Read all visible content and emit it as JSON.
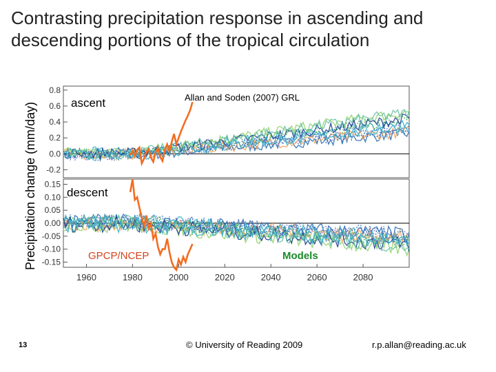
{
  "slide": {
    "title": "Contrasting precipitation response in ascending and descending portions of the tropical circulation",
    "page_number": "13",
    "copyright": "© University of Reading 2009",
    "email": "r.p.allan@reading.ac.uk"
  },
  "chart_data": {
    "type": "line",
    "ylabel": "Precipitation change (mm/day)",
    "xlim": [
      1950,
      2100
    ],
    "x_ticks": [
      "1960",
      "1980",
      "2000",
      "2020",
      "2040",
      "2060",
      "2080"
    ],
    "annotations": {
      "ascent": "ascent",
      "descent": "descent",
      "reference": "Allan and Soden (2007) GRL",
      "observations": "GPCP/NCEP",
      "models": "Models"
    },
    "colors": {
      "observations": "#f26d21",
      "model_palette": [
        "#2a6fb4",
        "#3ab0c8",
        "#3aa34a",
        "#8fd16a",
        "#f2a35c",
        "#7a7acc",
        "#1a3d8f",
        "#66c2a5"
      ]
    },
    "panels": [
      {
        "name": "ascent",
        "ylim": [
          -0.3,
          0.85
        ],
        "y_ticks": [
          "0.8",
          "0.6",
          "0.4",
          "0.2",
          "0.0",
          "-0.2"
        ],
        "observations": {
          "name": "GPCP/NCEP",
          "x": [
            1979,
            1980,
            1981,
            1982,
            1983,
            1984,
            1985,
            1986,
            1987,
            1988,
            1989,
            1990,
            1991,
            1992,
            1993,
            1994,
            1995,
            1996,
            1997,
            1998,
            1999,
            2000,
            2001,
            2002,
            2003,
            2004,
            2005,
            2006
          ],
          "y": [
            -0.02,
            0.04,
            -0.03,
            0.05,
            0.08,
            -0.12,
            -0.06,
            0.02,
            0.06,
            -0.05,
            -0.1,
            0.02,
            0.07,
            -0.04,
            -0.09,
            0.05,
            0.12,
            0.03,
            0.15,
            0.25,
            0.12,
            0.2,
            0.28,
            0.35,
            0.42,
            0.48,
            0.55,
            0.65
          ]
        },
        "models": {
          "start_year": 1950,
          "end_year": 2100,
          "trend_start": 1980,
          "trend_per_year": 0.0033,
          "noise": 0.07,
          "count": 10
        }
      },
      {
        "name": "descent",
        "ylim": [
          -0.17,
          0.17
        ],
        "y_ticks": [
          "0.15",
          "0.10",
          "0.05",
          "0.00",
          "-0.05",
          "-0.10",
          "-0.15"
        ],
        "observations": {
          "name": "GPCP/NCEP",
          "x": [
            1979,
            1980,
            1981,
            1982,
            1983,
            1984,
            1985,
            1986,
            1987,
            1988,
            1989,
            1990,
            1991,
            1992,
            1993,
            1994,
            1995,
            1996,
            1997,
            1998,
            1999,
            2000,
            2001,
            2002,
            2003,
            2004,
            2005,
            2006
          ],
          "y": [
            0.12,
            0.17,
            0.09,
            0.1,
            0.06,
            0.02,
            -0.01,
            0.03,
            -0.02,
            0.0,
            -0.06,
            -0.04,
            -0.09,
            -0.12,
            -0.1,
            -0.1,
            -0.06,
            -0.11,
            -0.15,
            -0.17,
            -0.18,
            -0.14,
            -0.16,
            -0.13,
            -0.15,
            -0.12,
            -0.1,
            -0.08
          ]
        },
        "models": {
          "start_year": 1950,
          "end_year": 2100,
          "trend_start": 1980,
          "trend_per_year": -0.0006,
          "noise": 0.03,
          "count": 10
        }
      }
    ]
  }
}
